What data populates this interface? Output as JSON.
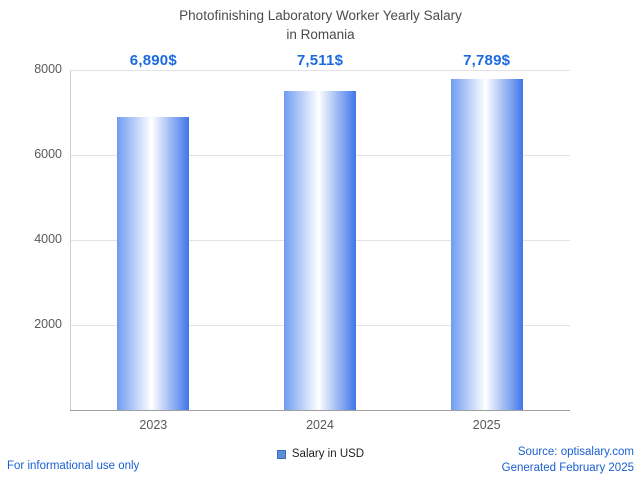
{
  "title": {
    "line1": "Photofinishing Laboratory Worker Yearly Salary",
    "line2": "in Romania"
  },
  "chart_data": {
    "type": "bar",
    "categories": [
      "2023",
      "2024",
      "2025"
    ],
    "values": [
      6890,
      7511,
      7789
    ],
    "value_labels": [
      "6,890$",
      "7,511$",
      "7,789$"
    ],
    "title": "Photofinishing Laboratory Worker Yearly Salary in Romania",
    "xlabel": "",
    "ylabel": "",
    "ylim": [
      0,
      8000
    ],
    "yticks": [
      2000,
      4000,
      6000,
      8000
    ],
    "grid": true,
    "legend_position": "bottom",
    "bar_gradient_left": "#6f9cf1",
    "bar_gradient_right": "#3f76e9",
    "value_label_color": "#1d6ae0"
  },
  "legend": {
    "label": "Salary in USD",
    "swatch_color": "#5b8dd9"
  },
  "footer": {
    "disclaimer": "For informational use only",
    "source": "Source: optisalary.com",
    "generated": "Generated February 2025",
    "text_color": "#1a5fd0"
  }
}
